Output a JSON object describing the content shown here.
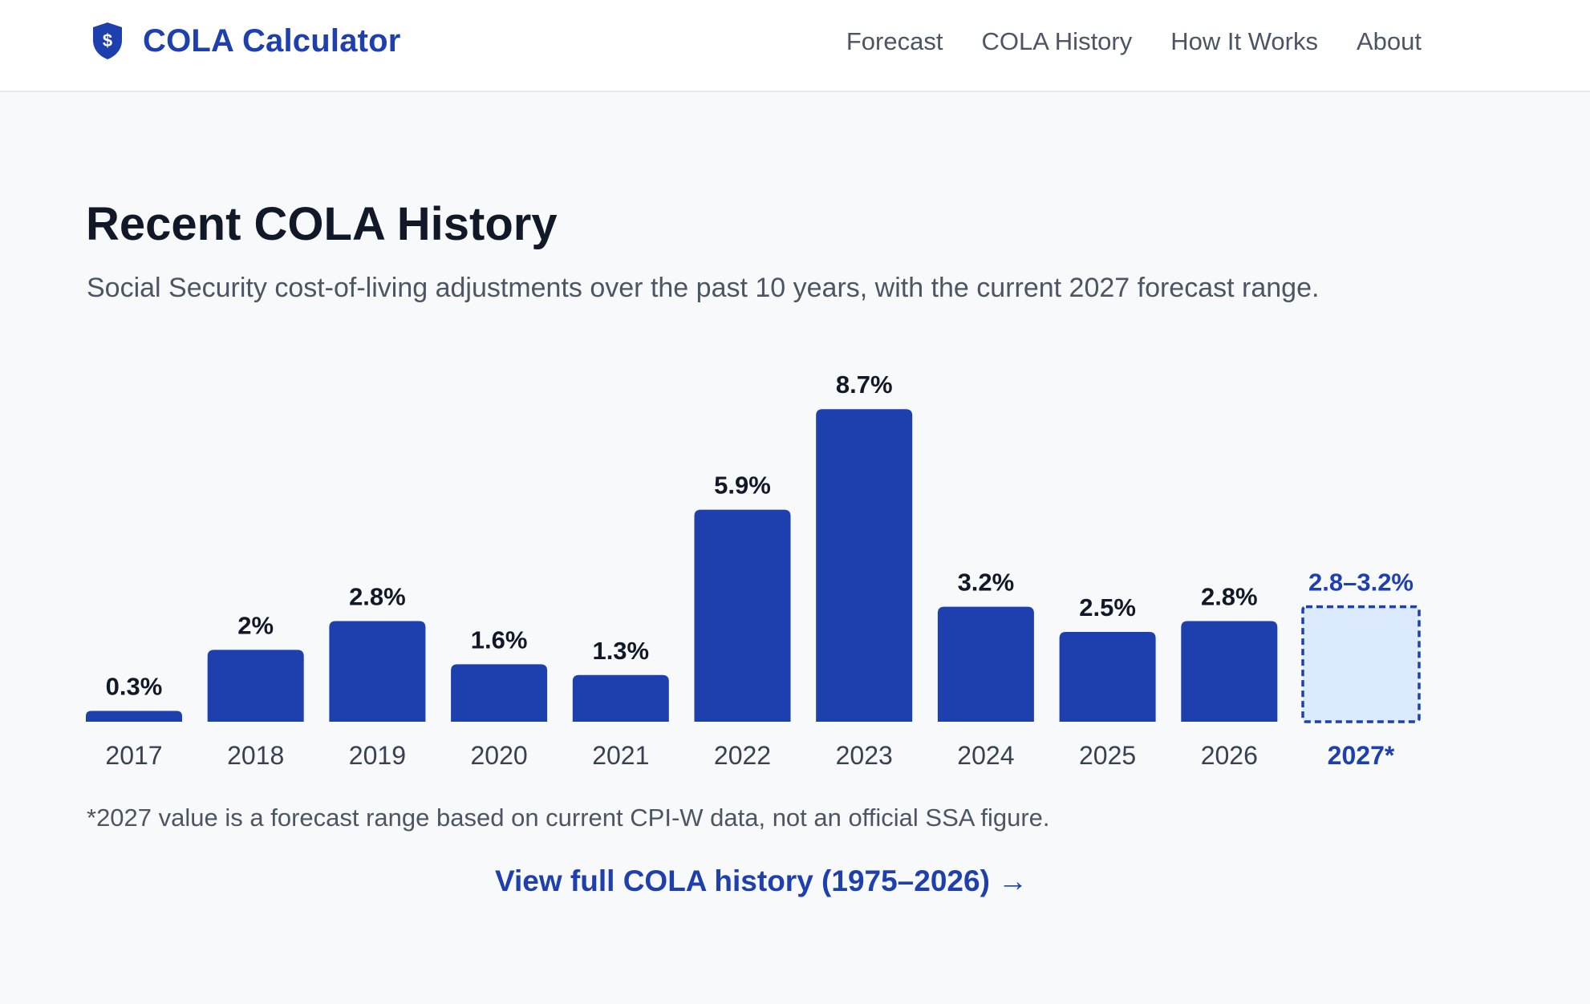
{
  "header": {
    "brand_name": "COLA Calculator",
    "brand_icon": "shield-dollar-icon",
    "nav": [
      {
        "label": "Forecast"
      },
      {
        "label": "COLA History"
      },
      {
        "label": "How It Works"
      },
      {
        "label": "About"
      }
    ]
  },
  "main": {
    "title": "Recent COLA History",
    "subtitle": "Social Security cost-of-living adjustments over the past 10 years, with the current 2027 forecast range.",
    "footnote": "*2027 value is a forecast range based on current CPI-W data, not an official SSA figure.",
    "full_history_link": "View full COLA history (1975–2026) →"
  },
  "colors": {
    "accent": "#1e3fae",
    "forecast_fill": "#dbeafe"
  },
  "chart_data": {
    "type": "bar",
    "categories": [
      "2017",
      "2018",
      "2019",
      "2020",
      "2021",
      "2022",
      "2023",
      "2024",
      "2025",
      "2026"
    ],
    "values": [
      0.3,
      2.0,
      2.8,
      1.6,
      1.3,
      5.9,
      8.7,
      3.2,
      2.5,
      2.8
    ],
    "value_labels": [
      "0.3%",
      "2%",
      "2.8%",
      "1.6%",
      "1.3%",
      "5.9%",
      "8.7%",
      "3.2%",
      "2.5%",
      "2.8%"
    ],
    "forecast": {
      "category": "2027*",
      "low": 2.8,
      "high": 3.2,
      "label": "2.8–3.2%"
    },
    "ylim": [
      0,
      8.7
    ],
    "grid": false,
    "legend": "none"
  }
}
